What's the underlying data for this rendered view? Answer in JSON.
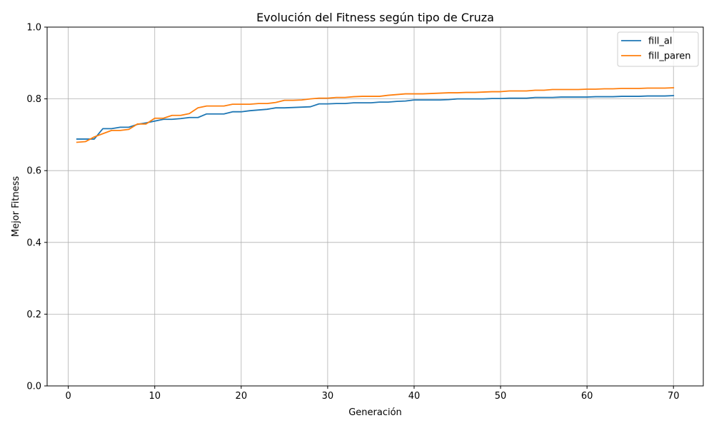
{
  "chart_data": {
    "type": "line",
    "title": "Evolución del Fitness según tipo de Cruza",
    "xlabel": "Generación",
    "ylabel": "Mejor Fitness",
    "xlim": [
      -2.45,
      73.45
    ],
    "ylim": [
      0.0,
      1.0
    ],
    "xticks": [
      0,
      10,
      20,
      30,
      40,
      50,
      60,
      70
    ],
    "xtick_labels": [
      "0",
      "10",
      "20",
      "30",
      "40",
      "50",
      "60",
      "70"
    ],
    "yticks": [
      0.0,
      0.2,
      0.4,
      0.6,
      0.8,
      1.0
    ],
    "ytick_labels": [
      "0.0",
      "0.2",
      "0.4",
      "0.6",
      "0.8",
      "1.0"
    ],
    "grid": true,
    "legend_position": "top-right",
    "x": [
      1,
      2,
      3,
      4,
      5,
      6,
      7,
      8,
      9,
      10,
      11,
      12,
      13,
      14,
      15,
      16,
      17,
      18,
      19,
      20,
      21,
      22,
      23,
      24,
      25,
      26,
      27,
      28,
      29,
      30,
      31,
      32,
      33,
      34,
      35,
      36,
      37,
      38,
      39,
      40,
      41,
      42,
      43,
      44,
      45,
      46,
      47,
      48,
      49,
      50,
      51,
      52,
      53,
      54,
      55,
      56,
      57,
      58,
      59,
      60,
      61,
      62,
      63,
      64,
      65,
      66,
      67,
      68,
      69,
      70
    ],
    "series": [
      {
        "name": "fill_al",
        "color": "#1f77b4",
        "values": [
          0.688,
          0.688,
          0.688,
          0.717,
          0.717,
          0.721,
          0.721,
          0.729,
          0.733,
          0.738,
          0.743,
          0.743,
          0.745,
          0.748,
          0.748,
          0.758,
          0.758,
          0.758,
          0.764,
          0.764,
          0.767,
          0.769,
          0.771,
          0.775,
          0.775,
          0.776,
          0.777,
          0.778,
          0.786,
          0.786,
          0.787,
          0.787,
          0.789,
          0.789,
          0.789,
          0.791,
          0.791,
          0.793,
          0.794,
          0.797,
          0.797,
          0.797,
          0.797,
          0.798,
          0.8,
          0.8,
          0.8,
          0.8,
          0.801,
          0.801,
          0.802,
          0.802,
          0.802,
          0.804,
          0.804,
          0.804,
          0.805,
          0.805,
          0.805,
          0.805,
          0.806,
          0.806,
          0.806,
          0.807,
          0.807,
          0.807,
          0.808,
          0.808,
          0.808,
          0.809
        ]
      },
      {
        "name": "fill_paren",
        "color": "#ff7f0e",
        "values": [
          0.679,
          0.681,
          0.694,
          0.703,
          0.712,
          0.712,
          0.715,
          0.73,
          0.73,
          0.746,
          0.746,
          0.754,
          0.754,
          0.759,
          0.775,
          0.78,
          0.78,
          0.78,
          0.785,
          0.785,
          0.785,
          0.787,
          0.787,
          0.79,
          0.796,
          0.796,
          0.797,
          0.8,
          0.802,
          0.802,
          0.804,
          0.804,
          0.806,
          0.807,
          0.807,
          0.807,
          0.81,
          0.812,
          0.814,
          0.814,
          0.814,
          0.815,
          0.816,
          0.817,
          0.817,
          0.818,
          0.818,
          0.819,
          0.82,
          0.82,
          0.822,
          0.822,
          0.822,
          0.824,
          0.824,
          0.826,
          0.826,
          0.826,
          0.826,
          0.827,
          0.827,
          0.828,
          0.828,
          0.829,
          0.829,
          0.829,
          0.83,
          0.83,
          0.83,
          0.831
        ]
      }
    ]
  }
}
